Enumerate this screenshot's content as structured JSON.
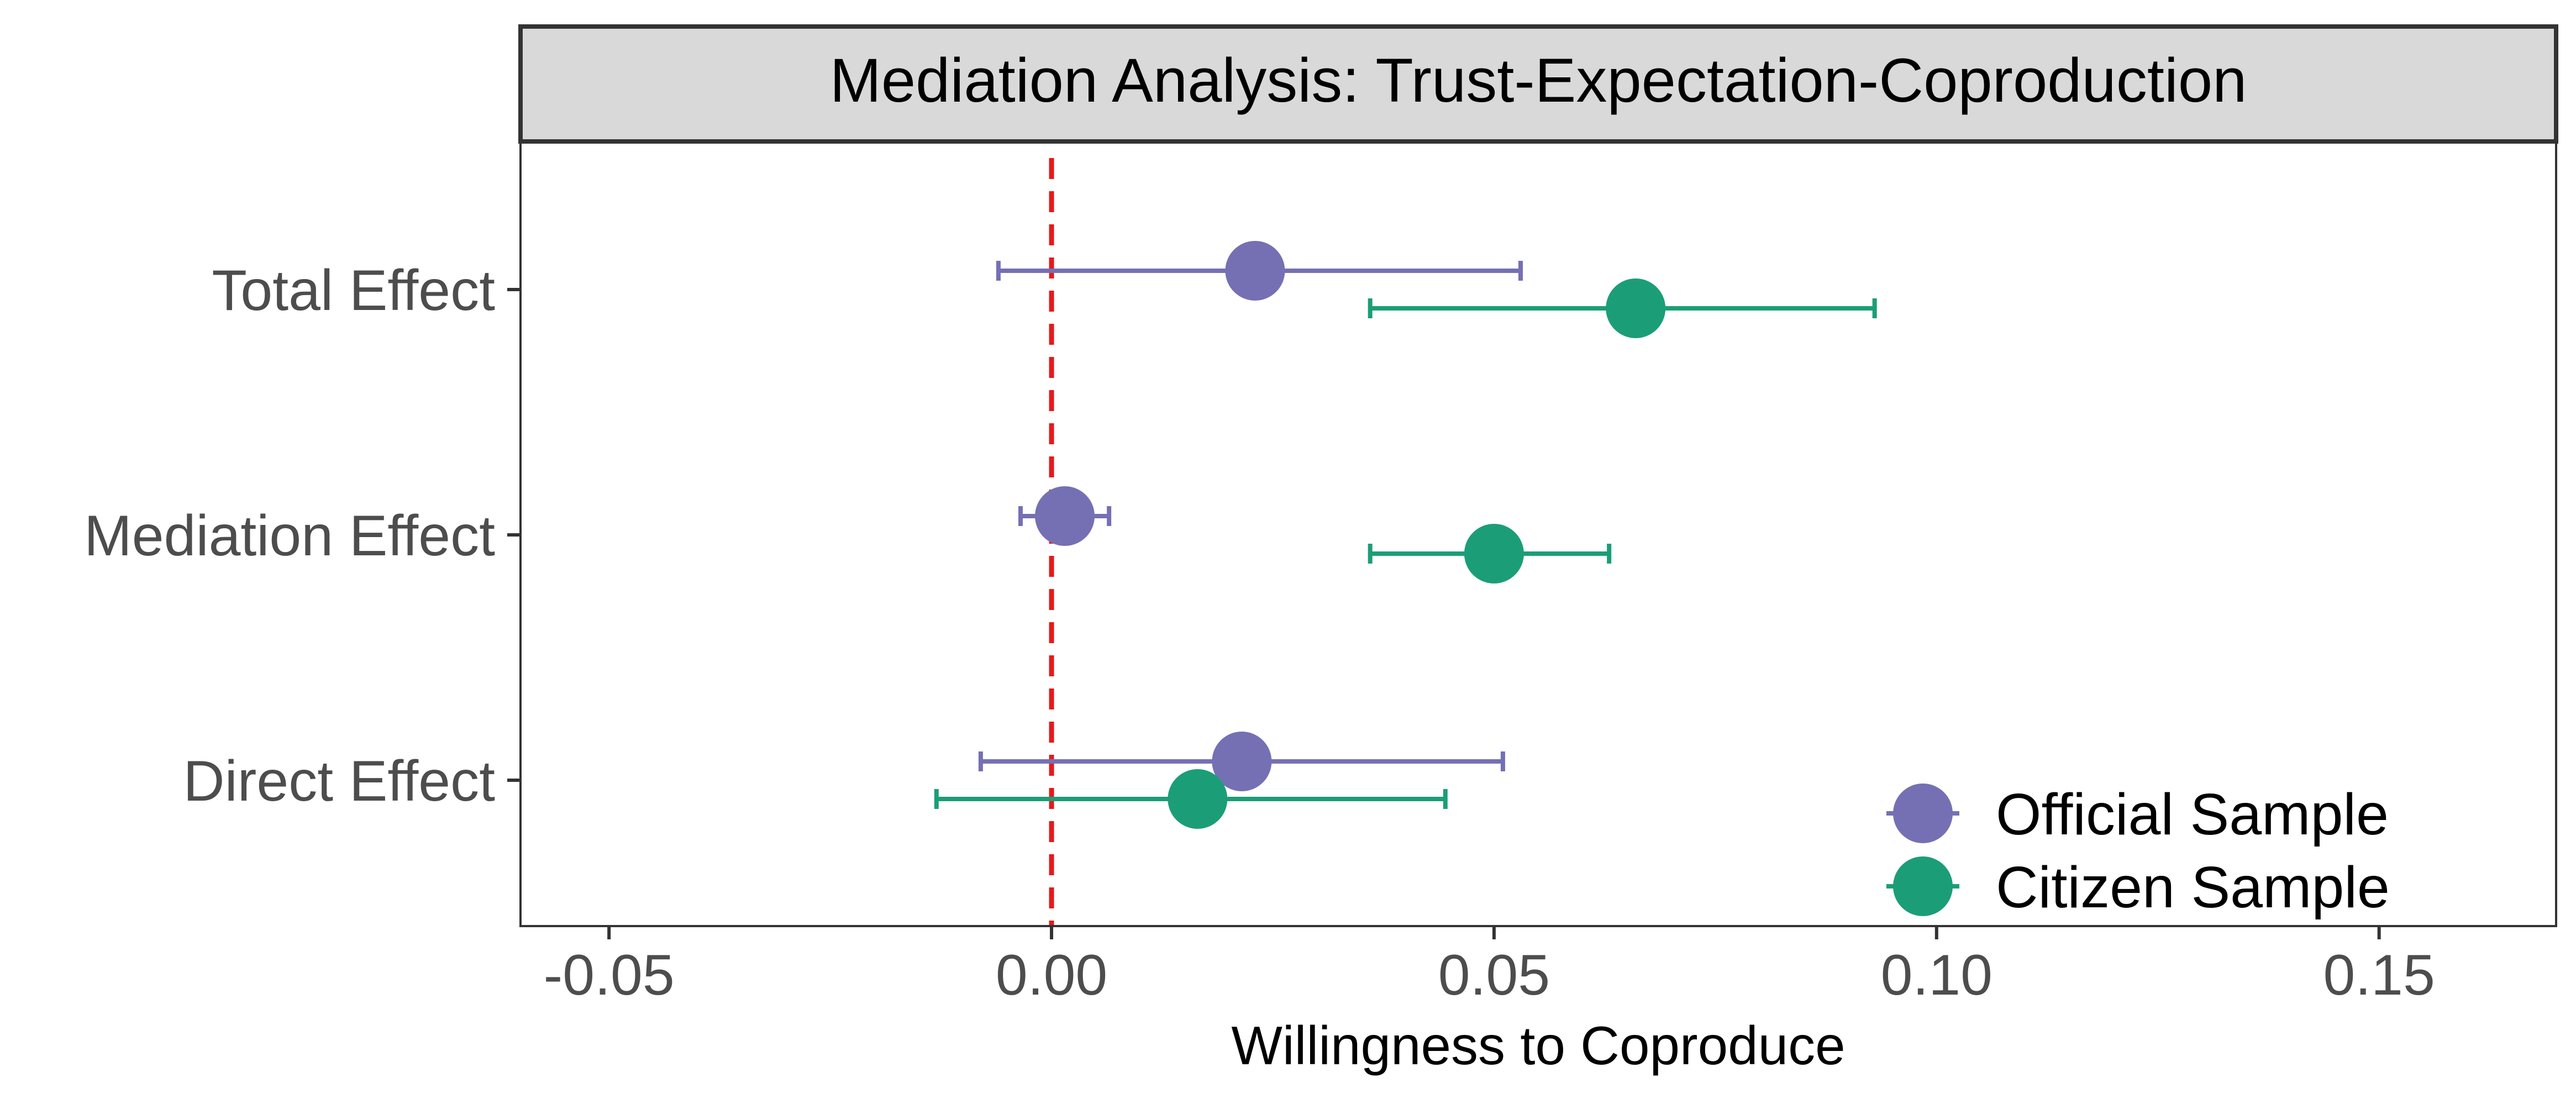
{
  "chart_data": {
    "type": "forest",
    "title": "Mediation Analysis: Trust-Expectation-Coproduction",
    "xlabel": "Willingness to Coproduce",
    "ylabel": "",
    "xlim": [
      -0.06,
      0.17
    ],
    "xticks": [
      -0.05,
      0.0,
      0.05,
      0.1,
      0.15
    ],
    "xtick_labels": [
      "-0.05",
      "0.00",
      "0.05",
      "0.10",
      "0.15"
    ],
    "categories": [
      "Total Effect",
      "Mediation Effect",
      "Direct Effect"
    ],
    "reference_line": {
      "x": 0,
      "color": "#e41a1c",
      "style": "dashed"
    },
    "grid": false,
    "legend_position": "bottom-right",
    "series": [
      {
        "name": "Official Sample",
        "color": "#7570b3",
        "points": [
          {
            "category": "Total Effect",
            "estimate": 0.023,
            "lower": -0.006,
            "upper": 0.053
          },
          {
            "category": "Mediation Effect",
            "estimate": 0.0015,
            "lower": -0.0035,
            "upper": 0.0065
          },
          {
            "category": "Direct Effect",
            "estimate": 0.0215,
            "lower": -0.008,
            "upper": 0.051
          }
        ]
      },
      {
        "name": "Citizen Sample",
        "color": "#1b9e77",
        "points": [
          {
            "category": "Total Effect",
            "estimate": 0.066,
            "lower": 0.036,
            "upper": 0.093
          },
          {
            "category": "Mediation Effect",
            "estimate": 0.05,
            "lower": 0.036,
            "upper": 0.063
          },
          {
            "category": "Direct Effect",
            "estimate": 0.0165,
            "lower": -0.013,
            "upper": 0.0445
          }
        ]
      }
    ]
  }
}
